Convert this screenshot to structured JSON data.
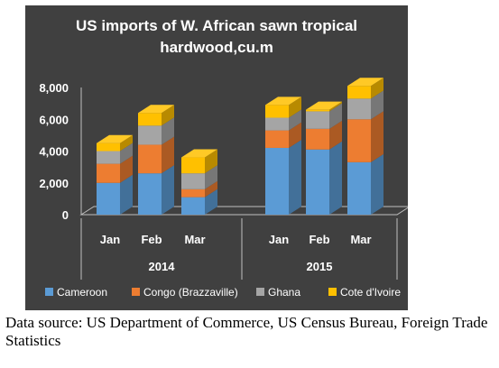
{
  "chart_data": {
    "type": "bar",
    "stacked": true,
    "three_d": true,
    "title_lines": [
      "US imports of W. African sawn tropical",
      "hardwood,cu.m"
    ],
    "categories": [
      "Jan",
      "Feb",
      "Mar",
      "Jan",
      "Feb",
      "Mar"
    ],
    "groups": [
      {
        "label": "2014",
        "categories": [
          "Jan",
          "Feb",
          "Mar"
        ]
      },
      {
        "label": "2015",
        "categories": [
          "Jan",
          "Feb",
          "Mar"
        ]
      }
    ],
    "y_ticks": [
      "0",
      "2,000",
      "4,000",
      "6,000",
      "8,000"
    ],
    "ylim": [
      0,
      8000
    ],
    "legend_position": "bottom",
    "series": [
      {
        "name": "Cameroon",
        "color": "#5b9bd5",
        "values": [
          2000,
          2600,
          1100,
          4200,
          4100,
          3300
        ]
      },
      {
        "name": "Congo (Brazzaville)",
        "color": "#ed7d31",
        "values": [
          1200,
          1800,
          500,
          1100,
          1300,
          2700
        ]
      },
      {
        "name": "Ghana",
        "color": "#a5a5a5",
        "values": [
          800,
          1200,
          1000,
          800,
          1100,
          1300
        ]
      },
      {
        "name": "Cote d'Ivoire",
        "color": "#ffc000",
        "values": [
          500,
          800,
          1000,
          800,
          100,
          800
        ]
      }
    ]
  },
  "source_note": "Data source: US Department of Commerce, US Census Bureau, Foreign Trade Statistics"
}
